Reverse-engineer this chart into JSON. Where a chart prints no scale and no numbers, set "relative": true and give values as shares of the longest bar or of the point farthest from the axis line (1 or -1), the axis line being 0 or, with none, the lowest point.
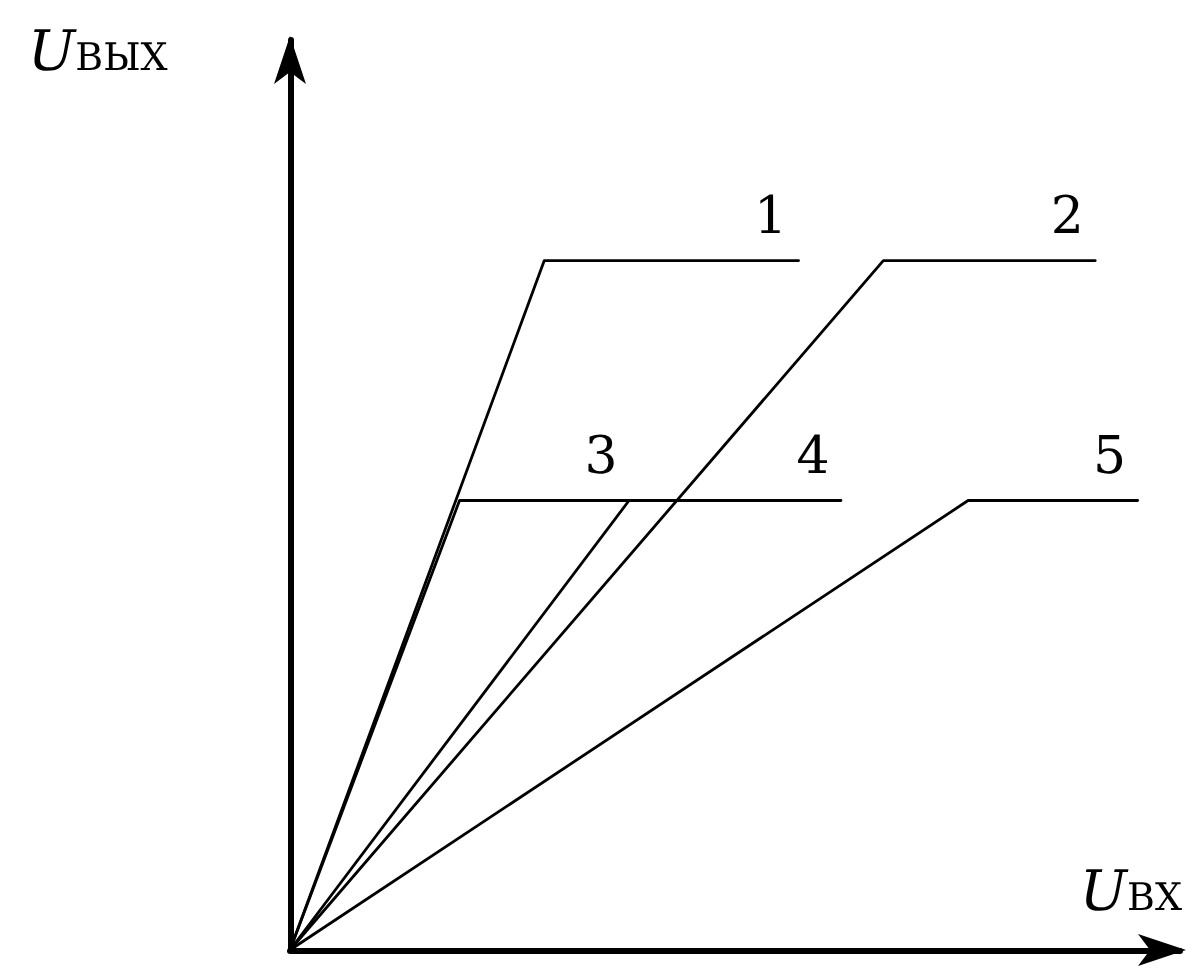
{
  "chart_data": {
    "type": "line",
    "relative": true,
    "xlabel": "U$_{ВХ}$",
    "ylabel": "U$_{ВЫХ}$",
    "marker": "none",
    "line_style": "solid",
    "grid": false,
    "legend": false,
    "categories": [
      null,
      null,
      null,
      null,
      null,
      null,
      null,
      null,
      null,
      null,
      null,
      null,
      null,
      null,
      null,
      null,
      null,
      null,
      null,
      null,
      null,
      null
    ],
    "series": [
      {
        "name": "1",
        "color": "#000000",
        "values": [
          0,
          null,
          null,
          null,
          null,
          null,
          1,
          null,
          null,
          null,
          null,
          null,
          1,
          null,
          null,
          null,
          null,
          null,
          null,
          null,
          null,
          null
        ]
      },
      {
        "name": "2",
        "color": "#000000",
        "values": [
          0,
          null,
          null,
          null,
          null,
          null,
          null,
          null,
          null,
          null,
          null,
          null,
          null,
          null,
          1,
          null,
          null,
          null,
          null,
          1,
          null,
          null
        ]
      },
      {
        "name": "3",
        "color": "#000000",
        "values": [
          0,
          null,
          null,
          null,
          0.652,
          null,
          null,
          null,
          0.652,
          null,
          null,
          null,
          null,
          null,
          null,
          null,
          null,
          null,
          null,
          null,
          null,
          null
        ]
      },
      {
        "name": "4",
        "color": "#000000",
        "values": [
          0,
          null,
          null,
          null,
          null,
          null,
          null,
          null,
          0.652,
          null,
          null,
          null,
          null,
          0.652,
          null,
          null,
          null,
          null,
          null,
          null,
          null,
          null
        ]
      },
      {
        "name": "5",
        "color": "#000000",
        "values": [
          0,
          null,
          null,
          null,
          null,
          null,
          null,
          null,
          null,
          null,
          null,
          null,
          null,
          null,
          null,
          null,
          0.652,
          null,
          null,
          null,
          0.652,
          null
        ]
      }
    ]
  }
}
